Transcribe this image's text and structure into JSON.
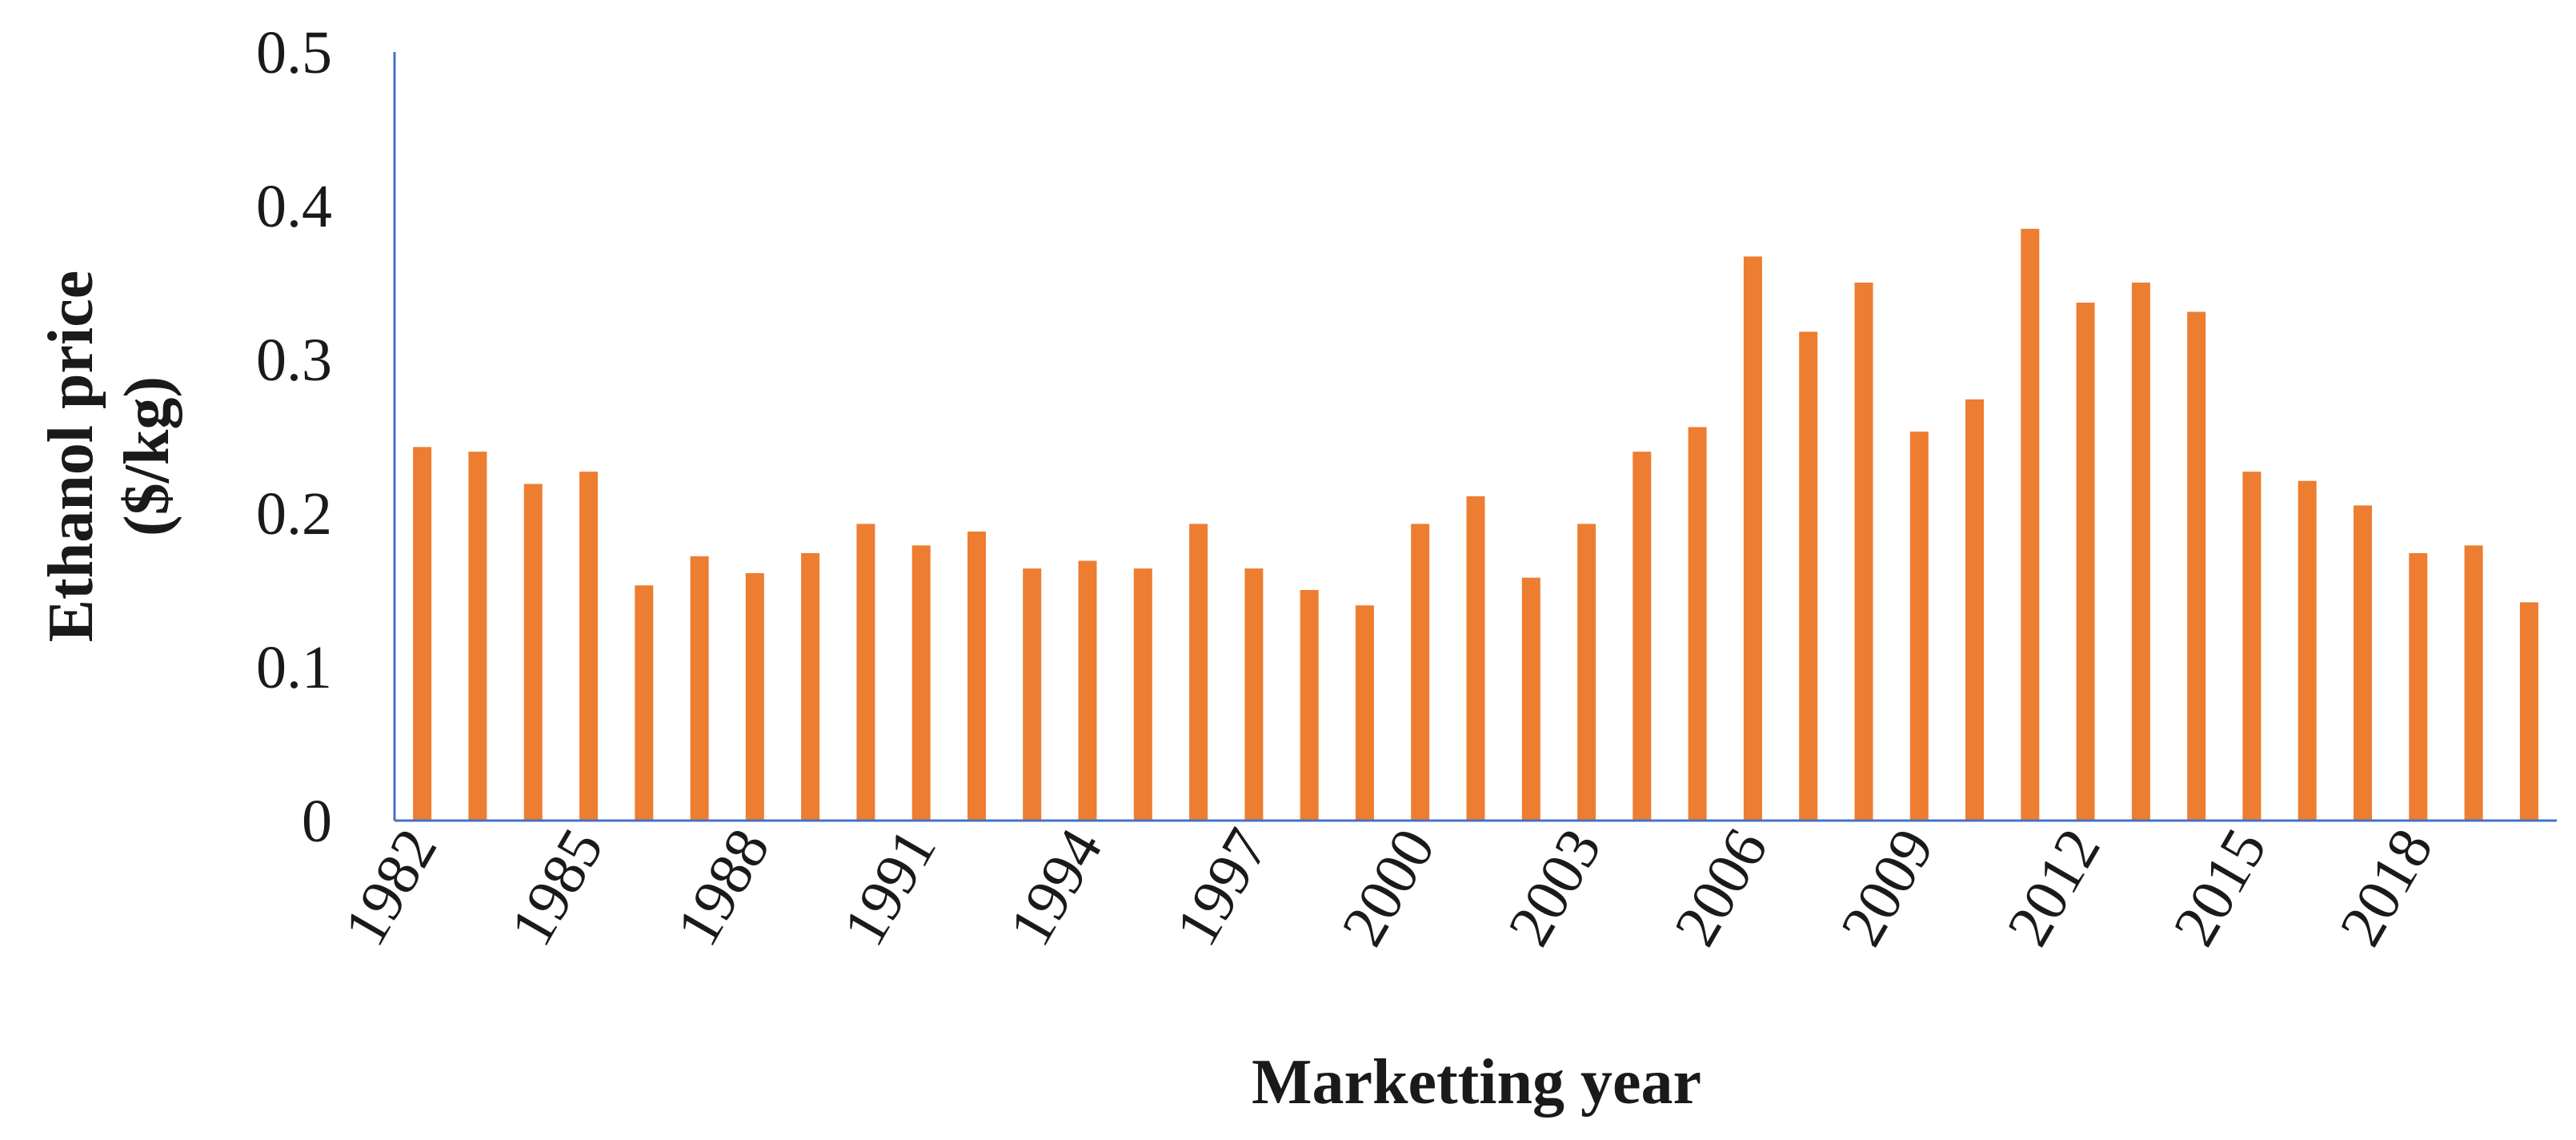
{
  "chart_data": {
    "type": "bar",
    "title": "",
    "xlabel": "Marketting year",
    "ylabel_line1": "Ethanol price",
    "ylabel_line2": "($/kg)",
    "ylim": [
      0,
      0.5
    ],
    "y_ticks": [
      "0",
      "0.1",
      "0.2",
      "0.3",
      "0.4",
      "0.5"
    ],
    "grid": false,
    "legend": "none",
    "bar_color": "#ed7d31",
    "axis_color": "#4472c4",
    "categories": [
      "1982",
      "1983",
      "1984",
      "1985",
      "1986",
      "1987",
      "1988",
      "1989",
      "1990",
      "1991",
      "1992",
      "1993",
      "1994",
      "1995",
      "1996",
      "1997",
      "1998",
      "1999",
      "2000",
      "2001",
      "2002",
      "2003",
      "2004",
      "2005",
      "2006",
      "2007",
      "2008",
      "2009",
      "2010",
      "2011",
      "2012",
      "2013",
      "2014",
      "2015",
      "2016",
      "2017",
      "2018",
      "2019",
      "2020"
    ],
    "x_tick_labels": [
      "1982",
      "",
      "",
      "1985",
      "",
      "",
      "1988",
      "",
      "",
      "1991",
      "",
      "",
      "1994",
      "",
      "",
      "1997",
      "",
      "",
      "2000",
      "",
      "",
      "2003",
      "",
      "",
      "2006",
      "",
      "",
      "2009",
      "",
      "",
      "2012",
      "",
      "",
      "2015",
      "",
      "",
      "2018",
      "",
      ""
    ],
    "values": [
      0.243,
      0.24,
      0.219,
      0.227,
      0.153,
      0.172,
      0.161,
      0.174,
      0.193,
      0.179,
      0.188,
      0.164,
      0.169,
      0.164,
      0.193,
      0.164,
      0.15,
      0.14,
      0.193,
      0.211,
      0.158,
      0.193,
      0.24,
      0.256,
      0.367,
      0.318,
      0.35,
      0.253,
      0.274,
      0.385,
      0.337,
      0.35,
      0.331,
      0.227,
      0.221,
      0.205,
      0.174,
      0.179,
      0.142
    ]
  }
}
